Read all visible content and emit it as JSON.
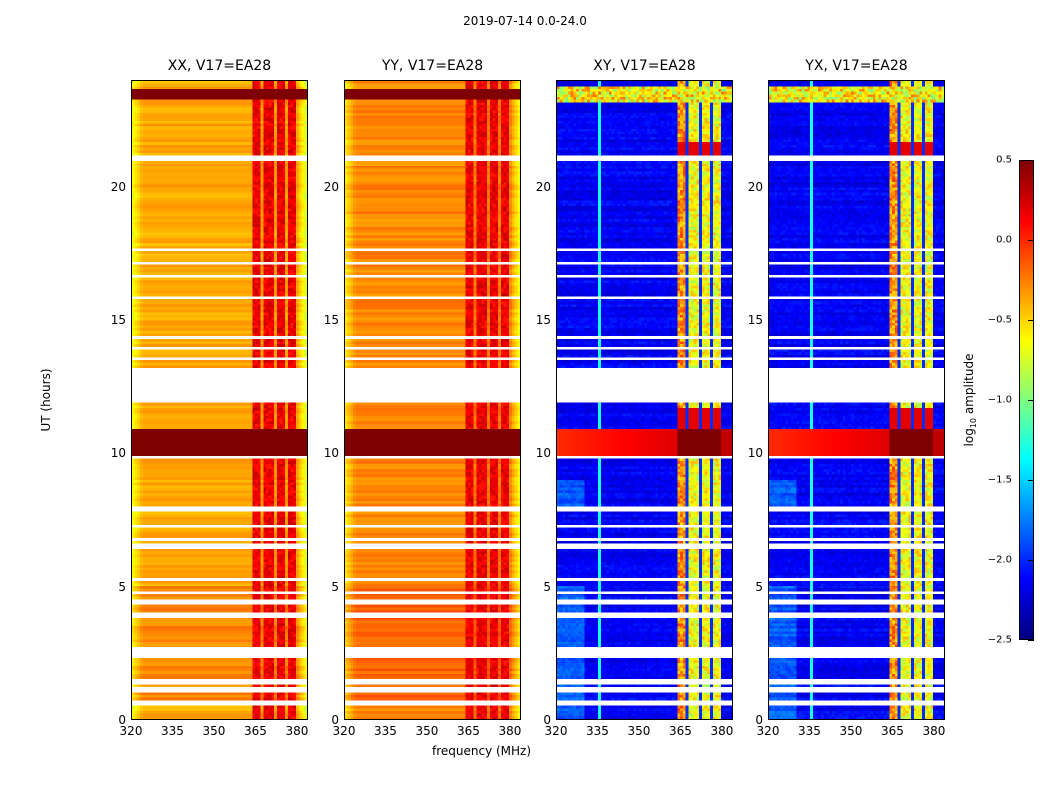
{
  "chart_data": [
    {
      "type": "heatmap",
      "title": "XX, V17=EA28",
      "xlabel": "frequency (MHz)",
      "ylabel": "UT (hours)",
      "x_ticks": [
        "320",
        "335",
        "350",
        "365",
        "380"
      ],
      "y_ticks": [
        "0",
        "5",
        "10",
        "15",
        "20"
      ],
      "xlim": [
        320,
        384
      ],
      "ylim": [
        0,
        24
      ],
      "colormap": "jet",
      "color_range": [
        -2.5,
        0.5
      ],
      "description": "High amplitude (yellow/orange ~ -0.5 to 0) across band, strong red channels 363-380 MHz, saturated RFI band ~10-10.5 h, data gap ~11.8-13.2 h"
    },
    {
      "type": "heatmap",
      "title": "YY, V17=EA28",
      "xlabel": "frequency (MHz)",
      "ylabel": "UT (hours)",
      "x_ticks": [
        "320",
        "335",
        "350",
        "365",
        "380"
      ],
      "y_ticks": [
        "0",
        "5",
        "10",
        "15",
        "20"
      ],
      "xlim": [
        320,
        384
      ],
      "ylim": [
        0,
        24
      ],
      "colormap": "jet",
      "color_range": [
        -2.5,
        0.5
      ],
      "description": "Similar to XX, slightly more orange"
    },
    {
      "type": "heatmap",
      "title": "XY, V17=EA28",
      "xlabel": "frequency (MHz)",
      "ylabel": "UT (hours)",
      "x_ticks": [
        "320",
        "335",
        "350",
        "365",
        "380"
      ],
      "y_ticks": [
        "0",
        "5",
        "10",
        "15",
        "20"
      ],
      "xlim": [
        320,
        384
      ],
      "ylim": [
        0,
        24
      ],
      "colormap": "jet",
      "color_range": [
        -2.5,
        0.5
      ],
      "description": "Low amplitude (dark blue ~ -2.3) background, bright channels 363-380 MHz, RFI band ~10-10.5 h"
    },
    {
      "type": "heatmap",
      "title": "YX, V17=EA28",
      "xlabel": "frequency (MHz)",
      "ylabel": "UT (hours)",
      "x_ticks": [
        "320",
        "335",
        "350",
        "365",
        "380"
      ],
      "y_ticks": [
        "0",
        "5",
        "10",
        "15",
        "20"
      ],
      "xlim": [
        320,
        384
      ],
      "ylim": [
        0,
        24
      ],
      "colormap": "jet",
      "color_range": [
        -2.5,
        0.5
      ],
      "description": "Similar to XY"
    }
  ],
  "figure": {
    "suptitle": "2019-07-14 0.0-24.0",
    "shared_xlabel": "frequency (MHz)",
    "shared_ylabel": "UT (hours)",
    "colorbar": {
      "label": "log10 amplitude",
      "label_main": "log",
      "label_sub": "10",
      "label_rest": " amplitude",
      "ticks": [
        "0.5",
        "0.0",
        "−0.5",
        "−1.0",
        "−1.5",
        "−2.0",
        "−2.5"
      ],
      "range": [
        -2.5,
        0.5
      ]
    }
  }
}
